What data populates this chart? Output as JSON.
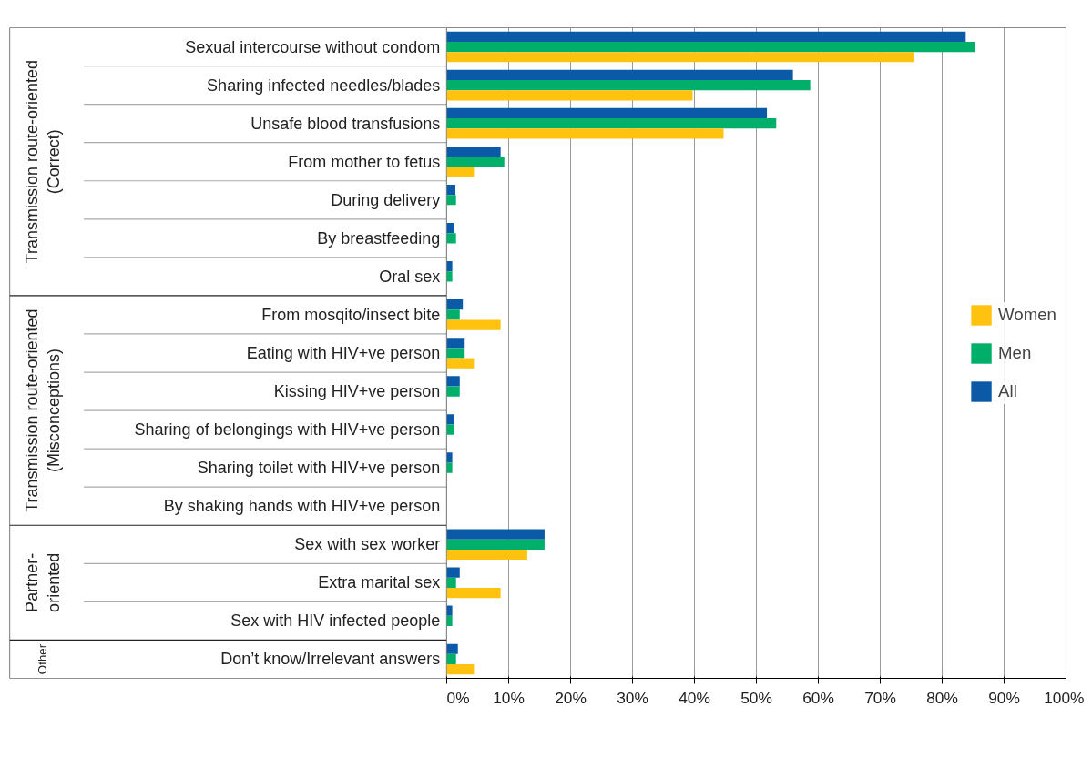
{
  "chart_data": {
    "type": "bar",
    "orientation": "horizontal",
    "categories": [
      "Sexual intercourse without condom",
      "Sharing infected needles/blades",
      "Unsafe blood transfusions",
      "From mother to fetus",
      "During delivery",
      "By breastfeeding",
      "Oral sex",
      "From mosqito/insect bite",
      "Eating with HIV+ve person",
      "Kissing HIV+ve person",
      "Sharing of belongings with HIV+ve person",
      "Sharing toilet with HIV+ve person",
      "By shaking hands with HIV+ve person",
      "Sex with sex worker",
      "Extra marital sex",
      "Sex with HIV infected people",
      "Don’t know/Irrelevant answers"
    ],
    "series": [
      {
        "name": "All",
        "color": "#0a5aa8",
        "values": [
          83.8,
          55.9,
          51.7,
          8.7,
          1.4,
          1.2,
          0.9,
          2.6,
          2.9,
          2.1,
          1.2,
          0.9,
          0,
          15.8,
          2.1,
          0.9,
          1.8
        ]
      },
      {
        "name": "Men",
        "color": "#00b06a",
        "values": [
          85.3,
          58.7,
          53.2,
          9.3,
          1.5,
          1.5,
          0.9,
          2.1,
          2.9,
          2.1,
          1.2,
          0.9,
          0,
          15.8,
          1.5,
          0.9,
          1.5
        ]
      },
      {
        "name": "Women",
        "color": "#ffc20e",
        "values": [
          75.5,
          39.7,
          44.7,
          4.4,
          0,
          0,
          0,
          8.7,
          4.4,
          0,
          0,
          0,
          0,
          13.0,
          8.7,
          0,
          4.4
        ]
      }
    ],
    "xlim": [
      0,
      100
    ],
    "xticks": [
      {
        "value": 0,
        "label": "0%"
      },
      {
        "value": 10,
        "label": "10%"
      },
      {
        "value": 20,
        "label": "20%"
      },
      {
        "value": 30,
        "label": "30%"
      },
      {
        "value": 40,
        "label": "40%"
      },
      {
        "value": 50,
        "label": "50%"
      },
      {
        "value": 60,
        "label": "60%"
      },
      {
        "value": 70,
        "label": "70%"
      },
      {
        "value": 80,
        "label": "80%"
      },
      {
        "value": 90,
        "label": "90%"
      },
      {
        "value": 100,
        "label": "100%"
      }
    ],
    "grid": "x",
    "legend": "right",
    "annotations": [
      "Transmission route-oriented\n(Correct)",
      "Transmission route-oriented\n(Misconceptions)",
      "Partner-\noriented",
      "Other"
    ]
  }
}
